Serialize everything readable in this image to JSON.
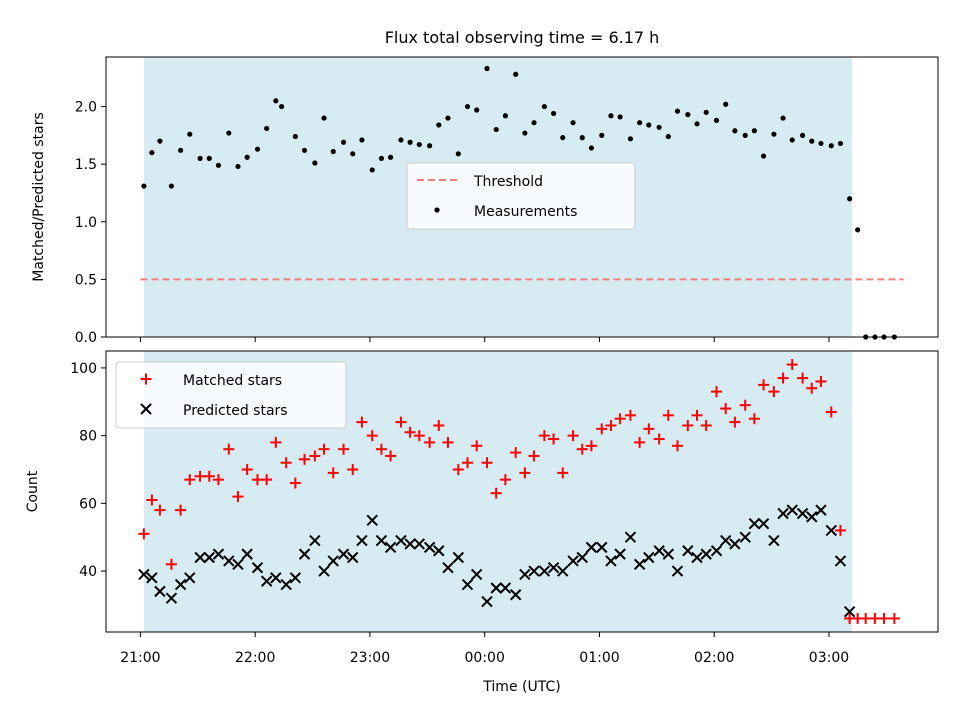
{
  "chart_data": [
    {
      "type": "scatter",
      "title": "Flux total observing time = 6.17 h",
      "ylabel": "Matched/Predicted stars",
      "xlabel": "",
      "ylim": [
        0,
        2.43
      ],
      "yticks": [
        "0.0",
        "0.5",
        "1.0",
        "1.5",
        "2.0"
      ],
      "threshold": 0.5,
      "shaded_span_x_hours": [
        21.03,
        27.2
      ],
      "legend": {
        "placement": "center",
        "entries": [
          "Threshold",
          "Measurements"
        ]
      },
      "series": [
        {
          "name": "Measurements",
          "x_hours": [
            21.03,
            21.1,
            21.17,
            21.27,
            21.35,
            21.43,
            21.52,
            21.6,
            21.68,
            21.77,
            21.85,
            21.93,
            22.02,
            22.1,
            22.18,
            22.23,
            22.35,
            22.43,
            22.52,
            22.6,
            22.68,
            22.77,
            22.85,
            22.93,
            23.02,
            23.1,
            23.18,
            23.27,
            23.35,
            23.43,
            23.52,
            23.6,
            23.68,
            23.77,
            23.85,
            23.93,
            24.02,
            24.1,
            24.18,
            24.27,
            24.35,
            24.43,
            24.52,
            24.6,
            24.68,
            24.77,
            24.85,
            24.93,
            25.02,
            25.1,
            25.18,
            25.27,
            25.35,
            25.43,
            25.52,
            25.6,
            25.68,
            25.77,
            25.85,
            25.93,
            26.02,
            26.1,
            26.18,
            26.27,
            26.35,
            26.43,
            26.52,
            26.6,
            26.68,
            26.77,
            26.85,
            26.93,
            27.02,
            27.1,
            27.18,
            27.25,
            27.32,
            27.4,
            27.48,
            27.57
          ],
          "values": [
            1.31,
            1.6,
            1.7,
            1.31,
            1.62,
            1.76,
            1.55,
            1.55,
            1.49,
            1.77,
            1.48,
            1.56,
            1.63,
            1.81,
            2.05,
            2.0,
            1.74,
            1.62,
            1.51,
            1.9,
            1.61,
            1.69,
            1.59,
            1.71,
            1.45,
            1.55,
            1.56,
            1.71,
            1.69,
            1.67,
            1.66,
            1.84,
            1.9,
            1.59,
            2.0,
            1.97,
            2.33,
            1.8,
            1.92,
            2.28,
            1.77,
            1.86,
            2.0,
            1.94,
            1.73,
            1.86,
            1.73,
            1.64,
            1.75,
            1.92,
            1.91,
            1.72,
            1.86,
            1.84,
            1.82,
            1.74,
            1.96,
            1.93,
            1.85,
            1.95,
            1.88,
            2.02,
            1.79,
            1.75,
            1.79,
            1.57,
            1.76,
            1.9,
            1.71,
            1.75,
            1.7,
            1.68,
            1.66,
            1.68,
            1.2,
            0.93,
            0.0,
            0.0,
            0.0,
            0.0
          ]
        }
      ]
    },
    {
      "type": "scatter",
      "xlabel": "Time (UTC)",
      "ylabel": "Count",
      "ylim": [
        22,
        105
      ],
      "yticks": [
        "40",
        "60",
        "80",
        "100"
      ],
      "x_ticks": [
        "21:00",
        "22:00",
        "23:00",
        "00:00",
        "01:00",
        "02:00",
        "03:00"
      ],
      "x_tick_hours": [
        21,
        22,
        23,
        24,
        25,
        26,
        27
      ],
      "xlim_hours": [
        20.7,
        27.95
      ],
      "shaded_span_x_hours": [
        21.03,
        27.2
      ],
      "legend": {
        "placement": "top-left",
        "entries": [
          "Matched stars",
          "Predicted stars"
        ]
      },
      "series": [
        {
          "name": "Matched stars",
          "marker": "plus",
          "color": "#ff0000",
          "x_hours": [
            21.03,
            21.1,
            21.17,
            21.27,
            21.35,
            21.43,
            21.52,
            21.6,
            21.68,
            21.77,
            21.85,
            21.93,
            22.02,
            22.1,
            22.18,
            22.27,
            22.35,
            22.43,
            22.52,
            22.6,
            22.68,
            22.77,
            22.85,
            22.93,
            23.02,
            23.1,
            23.18,
            23.27,
            23.35,
            23.43,
            23.52,
            23.6,
            23.68,
            23.77,
            23.85,
            23.93,
            24.02,
            24.1,
            24.18,
            24.27,
            24.35,
            24.43,
            24.52,
            24.6,
            24.68,
            24.77,
            24.85,
            24.93,
            25.02,
            25.1,
            25.18,
            25.27,
            25.35,
            25.43,
            25.52,
            25.6,
            25.68,
            25.77,
            25.85,
            25.93,
            26.02,
            26.1,
            26.18,
            26.27,
            26.35,
            26.43,
            26.52,
            26.6,
            26.68,
            26.77,
            26.85,
            26.93,
            27.02,
            27.1,
            27.18,
            27.25,
            27.32,
            27.4,
            27.48,
            27.57
          ],
          "values": [
            51,
            61,
            58,
            42,
            58,
            67,
            68,
            68,
            67,
            76,
            62,
            70,
            67,
            67,
            78,
            72,
            66,
            73,
            74,
            76,
            69,
            76,
            70,
            84,
            80,
            76,
            74,
            84,
            81,
            80,
            78,
            83,
            78,
            70,
            72,
            77,
            72,
            63,
            67,
            75,
            69,
            74,
            80,
            79,
            69,
            80,
            76,
            77,
            82,
            83,
            85,
            86,
            78,
            82,
            79,
            86,
            77,
            83,
            86,
            83,
            93,
            88,
            84,
            89,
            85,
            95,
            93,
            97,
            101,
            97,
            94,
            96,
            87,
            52,
            26,
            26,
            26,
            26,
            26,
            26
          ]
        },
        {
          "name": "Predicted stars",
          "marker": "x",
          "color": "#000000",
          "x_hours": [
            21.03,
            21.1,
            21.17,
            21.27,
            21.35,
            21.43,
            21.52,
            21.6,
            21.68,
            21.77,
            21.85,
            21.93,
            22.02,
            22.1,
            22.18,
            22.27,
            22.35,
            22.43,
            22.52,
            22.6,
            22.68,
            22.77,
            22.85,
            22.93,
            23.02,
            23.1,
            23.18,
            23.27,
            23.35,
            23.43,
            23.52,
            23.6,
            23.68,
            23.77,
            23.85,
            23.93,
            24.02,
            24.1,
            24.18,
            24.27,
            24.35,
            24.43,
            24.52,
            24.6,
            24.68,
            24.77,
            24.85,
            24.93,
            25.02,
            25.1,
            25.18,
            25.27,
            25.35,
            25.43,
            25.52,
            25.6,
            25.68,
            25.77,
            25.85,
            25.93,
            26.02,
            26.1,
            26.18,
            26.27,
            26.35,
            26.43,
            26.52,
            26.6,
            26.68,
            26.77,
            26.85,
            26.93,
            27.02,
            27.1,
            27.18
          ],
          "values": [
            39,
            38,
            34,
            32,
            36,
            38,
            44,
            44,
            45,
            43,
            42,
            45,
            41,
            37,
            38,
            36,
            38,
            45,
            49,
            40,
            43,
            45,
            44,
            49,
            55,
            49,
            47,
            49,
            48,
            48,
            47,
            46,
            41,
            44,
            36,
            39,
            31,
            35,
            35,
            33,
            39,
            40,
            40,
            41,
            40,
            43,
            44,
            47,
            47,
            43,
            45,
            50,
            42,
            44,
            46,
            45,
            40,
            46,
            44,
            45,
            46,
            49,
            48,
            50,
            54,
            54,
            49,
            57,
            58,
            57,
            56,
            58,
            52,
            43,
            28
          ]
        }
      ]
    }
  ]
}
